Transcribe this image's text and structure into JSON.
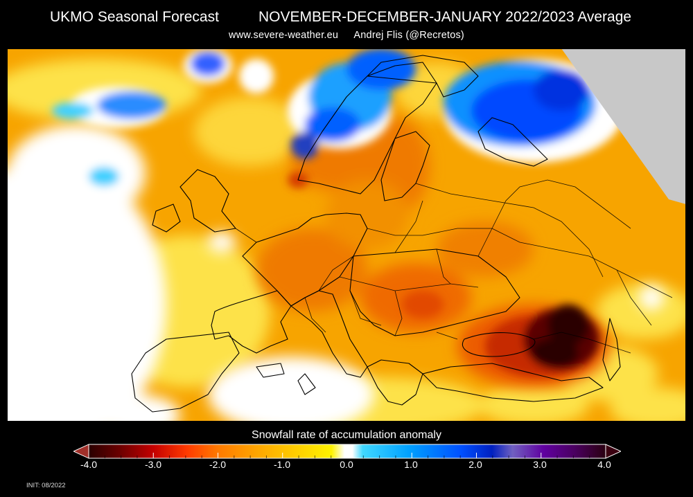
{
  "header": {
    "title_left": "UKMO Seasonal Forecast",
    "title_right": "NOVEMBER-DECEMBER-JANUARY 2022/2023 Average",
    "website": "www.severe-weather.eu",
    "author": "Andrej Flis (@Recretos)"
  },
  "colorbar": {
    "title": "Snowfall rate of accumulation anomaly",
    "range": [
      -4.0,
      4.0
    ],
    "tick_labels": [
      "-4.0",
      "-3.0",
      "-2.0",
      "-1.0",
      "0.0",
      "1.0",
      "2.0",
      "3.0",
      "4.0"
    ],
    "colors": {
      "strong_negative": "#2a0000",
      "negative": "#d43a00",
      "moderate_negative": "#f7a100",
      "weak_negative": "#fff000",
      "neutral": "#ffffff",
      "weak_positive": "#3fd0ff",
      "positive": "#0048ff",
      "strong_positive": "#2a0040",
      "no_data": "#c8c8c8"
    }
  },
  "footer": {
    "init": "INIT: 08/2022"
  }
}
